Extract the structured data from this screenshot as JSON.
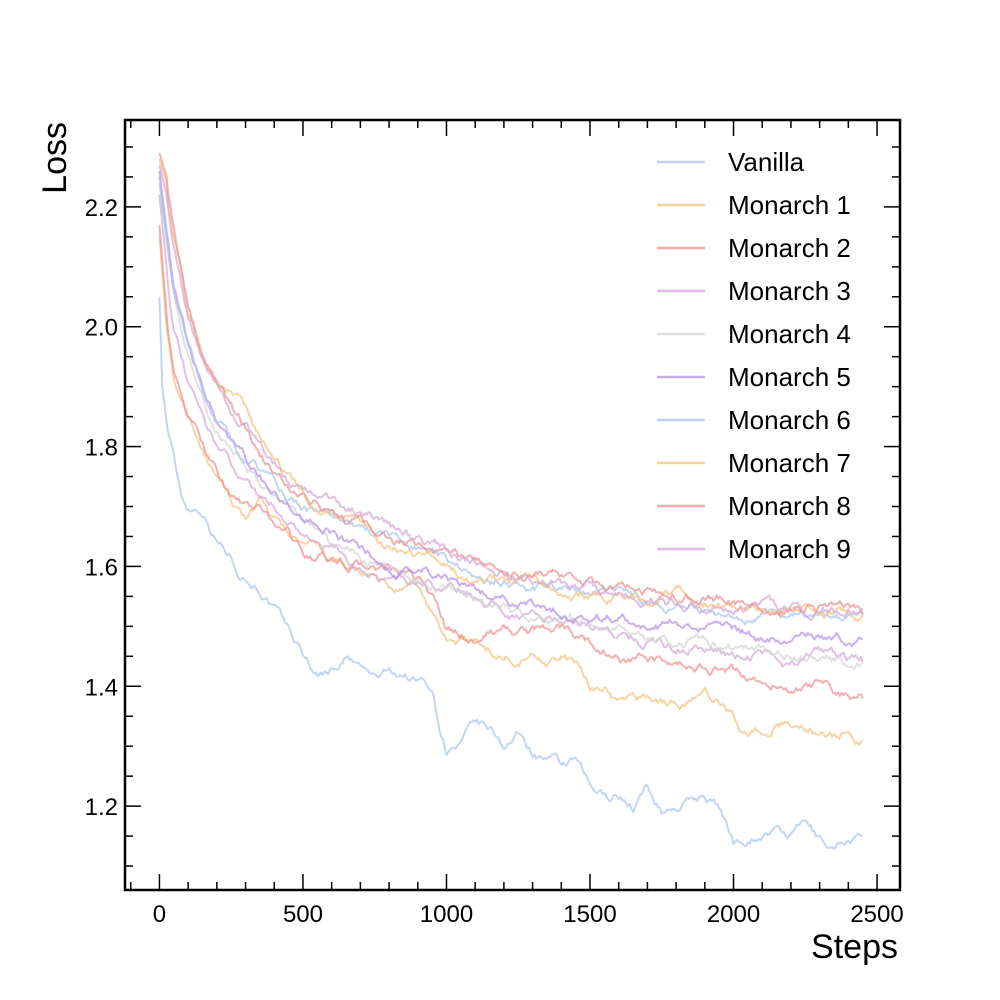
{
  "chart_data": {
    "type": "line",
    "xlabel": "Steps",
    "ylabel": "Loss",
    "xlim": [
      -120,
      2580
    ],
    "ylim": [
      1.06,
      2.345
    ],
    "xticks": [
      0,
      500,
      1000,
      1500,
      2000,
      2500
    ],
    "xtick_labels": [
      "0",
      "500",
      "1000",
      "1500",
      "2000",
      "2500"
    ],
    "yticks": [
      1.2,
      1.4,
      1.6,
      1.8,
      2.0,
      2.2
    ],
    "ytick_labels": [
      "1.2",
      "1.4",
      "1.6",
      "1.8",
      "2.0",
      "2.2"
    ],
    "grid": false,
    "legend_position": "top-right",
    "series": [
      {
        "name": "Vanilla",
        "color": "#a8c4f0",
        "x": [
          0,
          10,
          25,
          50,
          75,
          100,
          150,
          200,
          250,
          275,
          300,
          350,
          400,
          450,
          500,
          550,
          600,
          650,
          700,
          750,
          800,
          850,
          900,
          950,
          975,
          1000,
          1050,
          1100,
          1150,
          1200,
          1250,
          1300,
          1350,
          1400,
          1450,
          1500,
          1550,
          1600,
          1650,
          1700,
          1750,
          1800,
          1850,
          1900,
          1950,
          2000,
          2050,
          2100,
          2150,
          2200,
          2250,
          2300,
          2350,
          2400,
          2450
        ],
        "y": [
          2.05,
          1.9,
          1.84,
          1.78,
          1.72,
          1.7,
          1.7,
          1.65,
          1.62,
          1.6,
          1.59,
          1.57,
          1.53,
          1.49,
          1.45,
          1.42,
          1.43,
          1.45,
          1.43,
          1.41,
          1.42,
          1.42,
          1.41,
          1.4,
          1.34,
          1.3,
          1.3,
          1.33,
          1.32,
          1.3,
          1.32,
          1.29,
          1.28,
          1.26,
          1.27,
          1.22,
          1.21,
          1.22,
          1.2,
          1.23,
          1.19,
          1.2,
          1.21,
          1.22,
          1.2,
          1.14,
          1.15,
          1.16,
          1.16,
          1.15,
          1.17,
          1.14,
          1.13,
          1.15,
          1.15
        ]
      },
      {
        "name": "Monarch 1",
        "color": "#f5c27a",
        "x": [
          0,
          25,
          50,
          100,
          150,
          200,
          250,
          300,
          350,
          400,
          450,
          500,
          550,
          600,
          700,
          800,
          850,
          900,
          1000,
          1050,
          1100,
          1150,
          1200,
          1300,
          1400,
          1450,
          1500,
          1550,
          1600,
          1650,
          1700,
          1800,
          1900,
          1950,
          2000,
          2050,
          2100,
          2200,
          2300,
          2350,
          2400,
          2450
        ],
        "y": [
          2.15,
          2.0,
          1.9,
          1.85,
          1.8,
          1.74,
          1.7,
          1.68,
          1.7,
          1.67,
          1.65,
          1.63,
          1.62,
          1.6,
          1.58,
          1.56,
          1.55,
          1.56,
          1.47,
          1.48,
          1.47,
          1.46,
          1.45,
          1.46,
          1.45,
          1.44,
          1.39,
          1.4,
          1.37,
          1.38,
          1.38,
          1.37,
          1.38,
          1.37,
          1.35,
          1.32,
          1.33,
          1.34,
          1.33,
          1.32,
          1.33,
          1.31
        ]
      },
      {
        "name": "Monarch 2",
        "color": "#ee8f8f",
        "x": [
          0,
          25,
          50,
          100,
          150,
          200,
          250,
          300,
          350,
          400,
          450,
          500,
          550,
          600,
          700,
          800,
          850,
          900,
          950,
          1000,
          1100,
          1200,
          1300,
          1400,
          1500,
          1600,
          1700,
          1800,
          1900,
          2000,
          2100,
          2200,
          2300,
          2400,
          2450
        ],
        "y": [
          2.17,
          2.02,
          1.92,
          1.85,
          1.8,
          1.76,
          1.72,
          1.7,
          1.69,
          1.67,
          1.66,
          1.62,
          1.62,
          1.61,
          1.6,
          1.59,
          1.58,
          1.57,
          1.55,
          1.49,
          1.48,
          1.5,
          1.49,
          1.5,
          1.47,
          1.45,
          1.44,
          1.42,
          1.43,
          1.42,
          1.41,
          1.39,
          1.4,
          1.38,
          1.38
        ]
      },
      {
        "name": "Monarch 3",
        "color": "#d4a6d4",
        "x": [
          0,
          25,
          50,
          100,
          150,
          200,
          250,
          300,
          350,
          400,
          450,
          500,
          550,
          600,
          700,
          800,
          900,
          1000,
          1100,
          1200,
          1300,
          1400,
          1500,
          1600,
          1700,
          1800,
          1900,
          2000,
          2100,
          2200,
          2300,
          2400,
          2450
        ],
        "y": [
          2.22,
          2.1,
          2.0,
          1.9,
          1.84,
          1.8,
          1.77,
          1.75,
          1.72,
          1.7,
          1.68,
          1.66,
          1.64,
          1.63,
          1.6,
          1.58,
          1.57,
          1.56,
          1.55,
          1.53,
          1.52,
          1.52,
          1.5,
          1.49,
          1.48,
          1.47,
          1.47,
          1.45,
          1.46,
          1.44,
          1.45,
          1.44,
          1.44
        ]
      },
      {
        "name": "Monarch 4",
        "color": "#d4d4d4",
        "x": [
          0,
          25,
          50,
          100,
          150,
          200,
          250,
          300,
          350,
          400,
          450,
          500,
          550,
          600,
          700,
          800,
          900,
          1000,
          1100,
          1200,
          1300,
          1400,
          1500,
          1600,
          1700,
          1800,
          1900,
          2000,
          2100,
          2200,
          2300,
          2400,
          2450
        ],
        "y": [
          2.25,
          2.14,
          2.05,
          1.95,
          1.88,
          1.83,
          1.79,
          1.77,
          1.74,
          1.72,
          1.7,
          1.68,
          1.66,
          1.63,
          1.61,
          1.59,
          1.58,
          1.56,
          1.54,
          1.53,
          1.52,
          1.51,
          1.5,
          1.49,
          1.49,
          1.48,
          1.47,
          1.46,
          1.46,
          1.45,
          1.45,
          1.44,
          1.44
        ]
      },
      {
        "name": "Monarch 5",
        "color": "#b48ee6",
        "x": [
          0,
          25,
          50,
          100,
          150,
          200,
          250,
          300,
          350,
          400,
          450,
          500,
          550,
          600,
          700,
          800,
          900,
          1000,
          1100,
          1200,
          1300,
          1400,
          1500,
          1600,
          1700,
          1800,
          1900,
          2000,
          2100,
          2200,
          2300,
          2400,
          2450
        ],
        "y": [
          2.26,
          2.16,
          2.06,
          1.96,
          1.89,
          1.84,
          1.8,
          1.77,
          1.75,
          1.72,
          1.7,
          1.68,
          1.66,
          1.65,
          1.62,
          1.6,
          1.59,
          1.58,
          1.56,
          1.55,
          1.54,
          1.53,
          1.52,
          1.52,
          1.5,
          1.5,
          1.49,
          1.49,
          1.48,
          1.48,
          1.48,
          1.48,
          1.48
        ]
      },
      {
        "name": "Monarch 6",
        "color": "#a8c4f0",
        "x": [
          0,
          25,
          50,
          100,
          150,
          200,
          250,
          300,
          350,
          400,
          450,
          500,
          550,
          600,
          700,
          800,
          900,
          1000,
          1100,
          1200,
          1300,
          1400,
          1500,
          1600,
          1700,
          1800,
          1900,
          2000,
          2100,
          2200,
          2300,
          2400,
          2450
        ],
        "y": [
          2.24,
          2.15,
          2.06,
          1.97,
          1.9,
          1.85,
          1.81,
          1.78,
          1.76,
          1.74,
          1.72,
          1.7,
          1.69,
          1.68,
          1.66,
          1.65,
          1.63,
          1.61,
          1.59,
          1.58,
          1.57,
          1.56,
          1.55,
          1.55,
          1.54,
          1.53,
          1.53,
          1.52,
          1.52,
          1.52,
          1.52,
          1.52,
          1.52
        ]
      },
      {
        "name": "Monarch 7",
        "color": "#f5c27a",
        "x": [
          0,
          25,
          50,
          100,
          150,
          200,
          250,
          300,
          350,
          400,
          450,
          500,
          550,
          600,
          700,
          800,
          900,
          1000,
          1100,
          1200,
          1300,
          1400,
          1500,
          1600,
          1700,
          1800,
          1900,
          2000,
          2100,
          2200,
          2300,
          2400,
          2450
        ],
        "y": [
          2.28,
          2.24,
          2.16,
          2.03,
          1.96,
          1.92,
          1.9,
          1.87,
          1.82,
          1.78,
          1.75,
          1.72,
          1.7,
          1.69,
          1.67,
          1.64,
          1.62,
          1.61,
          1.59,
          1.58,
          1.57,
          1.56,
          1.55,
          1.55,
          1.54,
          1.55,
          1.54,
          1.54,
          1.53,
          1.53,
          1.52,
          1.52,
          1.52
        ]
      },
      {
        "name": "Monarch 8",
        "color": "#ee8f8f",
        "x": [
          0,
          25,
          50,
          100,
          150,
          200,
          250,
          300,
          350,
          400,
          450,
          500,
          550,
          600,
          700,
          800,
          900,
          1000,
          1100,
          1200,
          1300,
          1400,
          1500,
          1600,
          1700,
          1800,
          1900,
          2000,
          2100,
          2200,
          2300,
          2400,
          2450
        ],
        "y": [
          2.29,
          2.25,
          2.17,
          2.04,
          1.96,
          1.91,
          1.87,
          1.83,
          1.79,
          1.76,
          1.73,
          1.71,
          1.7,
          1.68,
          1.66,
          1.64,
          1.63,
          1.62,
          1.61,
          1.6,
          1.59,
          1.58,
          1.57,
          1.56,
          1.56,
          1.55,
          1.55,
          1.54,
          1.54,
          1.53,
          1.53,
          1.53,
          1.52
        ]
      },
      {
        "name": "Monarch 9",
        "color": "#d4a6d4",
        "x": [
          0,
          25,
          50,
          100,
          150,
          200,
          250,
          300,
          350,
          400,
          450,
          500,
          550,
          600,
          700,
          800,
          900,
          1000,
          1100,
          1200,
          1300,
          1400,
          1500,
          1600,
          1700,
          1800,
          1900,
          2000,
          2100,
          2200,
          2300,
          2400,
          2450
        ],
        "y": [
          2.27,
          2.22,
          2.14,
          2.02,
          1.95,
          1.9,
          1.86,
          1.83,
          1.8,
          1.77,
          1.74,
          1.72,
          1.71,
          1.7,
          1.69,
          1.67,
          1.64,
          1.62,
          1.6,
          1.59,
          1.58,
          1.57,
          1.56,
          1.55,
          1.55,
          1.54,
          1.53,
          1.53,
          1.53,
          1.53,
          1.53,
          1.53,
          1.53
        ]
      }
    ]
  }
}
